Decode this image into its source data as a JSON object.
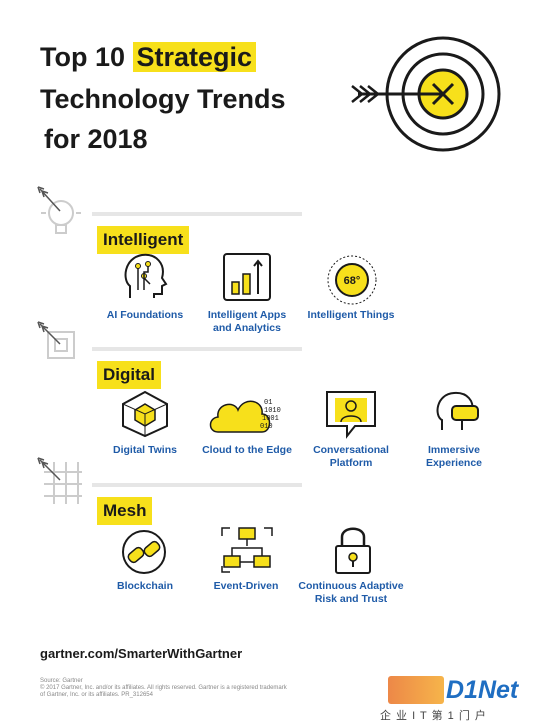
{
  "title": {
    "line1_a": "Top 10",
    "line1_b": "Strategic",
    "line2": "Technology Trends",
    "line3": "for 2018"
  },
  "sections": [
    {
      "label": "Intelligent",
      "items": [
        {
          "label": "AI Foundations",
          "icon": "ai-head-icon"
        },
        {
          "label": "Intelligent Apps and Analytics",
          "icon": "bar-chart-icon"
        },
        {
          "label": "Intelligent Things",
          "icon": "gauge-icon",
          "gauge_text": "68°"
        }
      ]
    },
    {
      "label": "Digital",
      "items": [
        {
          "label": "Digital Twins",
          "icon": "cube-icon"
        },
        {
          "label": "Cloud to the Edge",
          "icon": "cloud-icon",
          "binary": [
            "01",
            "1010",
            "1001",
            "010"
          ]
        },
        {
          "label": "Conversational Platform",
          "icon": "chat-person-icon"
        },
        {
          "label": "Immersive Experience",
          "icon": "vr-headset-icon"
        }
      ]
    },
    {
      "label": "Mesh",
      "items": [
        {
          "label": "Blockchain",
          "icon": "chain-icon"
        },
        {
          "label": "Event-Driven",
          "icon": "network-icon"
        },
        {
          "label": "Continuous Adaptive Risk and Trust",
          "icon": "padlock-icon"
        }
      ]
    }
  ],
  "footer": {
    "url": "gartner.com/SmarterWithGartner",
    "source": "Source: Gartner",
    "copyright": "© 2017 Gartner, Inc. and/or its affiliates. All rights reserved. Gartner is a registered trademark",
    "copyright2": "of Gartner, Inc. or its affiliates. PR_312654"
  },
  "watermark": {
    "brand": "D1Net",
    "tagline": "企 业 I T 第 1 门 户"
  },
  "colors": {
    "accent": "#f7e01b",
    "label_blue": "#1f5ba8",
    "dark": "#1a1a1a"
  }
}
